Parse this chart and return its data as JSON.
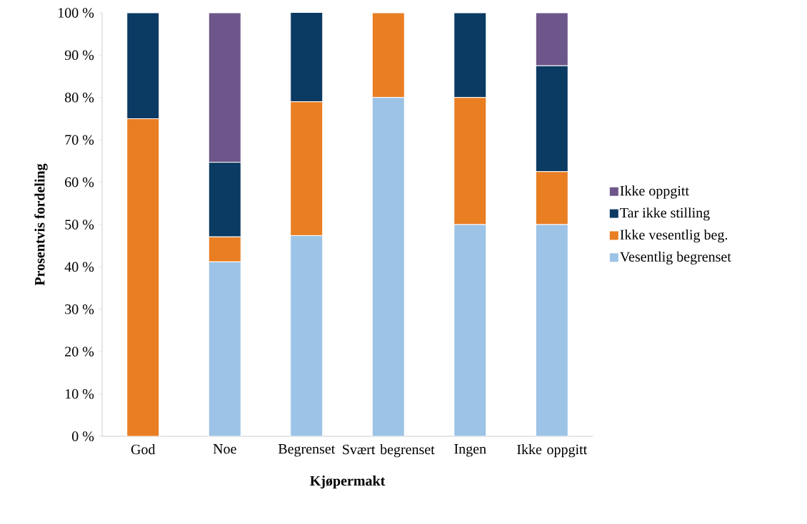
{
  "chart_data": {
    "type": "bar",
    "stacked": true,
    "xlabel": "Kjøpermakt",
    "ylabel": "Prosentvis fordeling",
    "categories": [
      "God",
      "Noe",
      "Begrenset",
      "Svært begrenset",
      "Ingen",
      "Ikke oppgitt"
    ],
    "series": [
      {
        "name": "Vesentlig begrenset",
        "color": "#9dc3e6",
        "values": [
          0,
          41.2,
          47.4,
          80,
          50,
          50
        ]
      },
      {
        "name": "Ikke vesentlig beg.",
        "color": "#e97e23",
        "values": [
          75,
          5.9,
          31.6,
          20,
          30,
          12.5
        ]
      },
      {
        "name": "Tar ikke stilling",
        "color": "#0b3a62",
        "values": [
          25,
          17.6,
          21.1,
          0,
          20,
          25
        ]
      },
      {
        "name": "Ikke oppgitt",
        "color": "#6d5689",
        "values": [
          0,
          35.3,
          0,
          0,
          0,
          12.5
        ]
      }
    ],
    "ylim": [
      0,
      100
    ],
    "yticks": [
      {
        "value": 0,
        "label": "0 %"
      },
      {
        "value": 10,
        "label": "10 %"
      },
      {
        "value": 20,
        "label": "20 %"
      },
      {
        "value": 30,
        "label": "30 %"
      },
      {
        "value": 40,
        "label": "40 %"
      },
      {
        "value": 50,
        "label": "50 %"
      },
      {
        "value": 60,
        "label": "60 %"
      },
      {
        "value": 70,
        "label": "70 %"
      },
      {
        "value": 80,
        "label": "80 %"
      },
      {
        "value": 90,
        "label": "90 %"
      },
      {
        "value": 100,
        "label": "100 %"
      }
    ],
    "grid": false,
    "legend": "right"
  }
}
